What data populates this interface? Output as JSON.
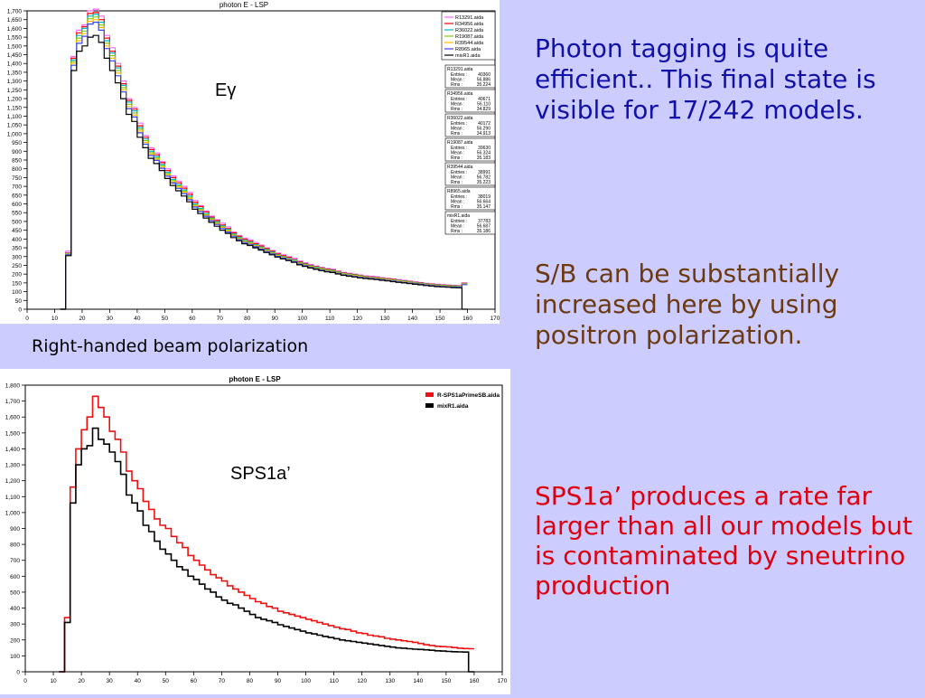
{
  "colors": {
    "background": "#ccccff",
    "text_blue": "#1111aa",
    "text_brown": "#6b3a12",
    "text_red": "#dd0011",
    "series_red": "#ee1111",
    "series_black": "#000000"
  },
  "caption": "Right-handed beam polarization",
  "text_blocks": [
    "Photon tagging is quite efficient.. This final state is visible for 17/242 models.",
    "S/B can be substantially increased here by using positron polarization.",
    "SPS1a’ produces a rate far larger than all our models but is contaminated by sneutrino production"
  ],
  "chart_data": [
    {
      "type": "line",
      "step": true,
      "title": "photon E - LSP",
      "annotation": "Eγ",
      "xlim": [
        0,
        170
      ],
      "ylim": [
        0,
        1700
      ],
      "xticks": [
        0,
        10,
        20,
        30,
        40,
        50,
        60,
        70,
        80,
        90,
        100,
        110,
        120,
        130,
        140,
        150,
        160,
        170
      ],
      "yticks": [
        0,
        50,
        100,
        150,
        200,
        250,
        300,
        350,
        400,
        450,
        500,
        550,
        600,
        650,
        700,
        750,
        800,
        850,
        900,
        950,
        1000,
        1050,
        1100,
        1150,
        1200,
        1250,
        1300,
        1350,
        1400,
        1450,
        1500,
        1550,
        1600,
        1650,
        1700
      ],
      "legend_position": "top-right",
      "x": [
        13,
        15,
        17,
        19,
        21,
        23,
        25,
        27,
        29,
        31,
        33,
        35,
        37,
        39,
        41,
        43,
        45,
        47,
        49,
        51,
        53,
        55,
        57,
        59,
        61,
        63,
        65,
        67,
        69,
        71,
        73,
        75,
        77,
        79,
        81,
        83,
        85,
        87,
        89,
        91,
        93,
        95,
        97,
        99,
        101,
        103,
        105,
        107,
        109,
        111,
        113,
        115,
        117,
        119,
        121,
        123,
        125,
        127,
        129,
        131,
        133,
        135,
        137,
        139,
        141,
        143,
        145,
        147,
        149,
        151,
        153,
        155,
        157,
        159
      ],
      "series": [
        {
          "name": "R13291.aida",
          "color": "#ff66ff",
          "values": [
            0,
            330,
            1440,
            1590,
            1620,
            1700,
            1710,
            1670,
            1560,
            1490,
            1400,
            1300,
            1200,
            1150,
            1060,
            990,
            920,
            890,
            840,
            800,
            760,
            730,
            700,
            665,
            620,
            590,
            560,
            530,
            510,
            490,
            470,
            440,
            420,
            405,
            395,
            380,
            365,
            350,
            335,
            320,
            310,
            300,
            290,
            275,
            265,
            255,
            245,
            238,
            232,
            228,
            218,
            210,
            205,
            200,
            195,
            190,
            188,
            185,
            180,
            176,
            172,
            168,
            165,
            160,
            156,
            152,
            148,
            145,
            142,
            140,
            138,
            136,
            135,
            150
          ]
        },
        {
          "name": "R34956.aida",
          "color": "#ff0000",
          "values": [
            0,
            320,
            1430,
            1575,
            1610,
            1685,
            1690,
            1650,
            1545,
            1470,
            1385,
            1285,
            1190,
            1140,
            1045,
            980,
            910,
            880,
            835,
            790,
            750,
            720,
            690,
            655,
            610,
            585,
            555,
            525,
            505,
            480,
            460,
            435,
            415,
            398,
            388,
            373,
            360,
            345,
            330,
            315,
            305,
            295,
            283,
            270,
            260,
            250,
            242,
            235,
            228,
            224,
            215,
            207,
            202,
            198,
            192,
            187,
            184,
            181,
            177,
            173,
            170,
            165,
            162,
            158,
            153,
            150,
            146,
            143,
            140,
            138,
            136,
            134,
            133,
            148
          ]
        },
        {
          "name": "R36022.aida",
          "color": "#00bbbb",
          "values": [
            0,
            318,
            1420,
            1560,
            1600,
            1670,
            1680,
            1635,
            1530,
            1460,
            1375,
            1275,
            1180,
            1130,
            1035,
            970,
            900,
            870,
            825,
            780,
            740,
            710,
            680,
            645,
            600,
            575,
            545,
            520,
            498,
            475,
            455,
            428,
            410,
            392,
            382,
            368,
            354,
            340,
            325,
            310,
            300,
            290,
            280,
            266,
            257,
            247,
            239,
            232,
            225,
            221,
            212,
            204,
            199,
            195,
            190,
            185,
            182,
            179,
            175,
            171,
            167,
            163,
            160,
            156,
            151,
            148,
            144,
            141,
            138,
            136,
            134,
            132,
            131,
            146
          ]
        },
        {
          "name": "R19087.aida",
          "color": "#88cc00",
          "values": [
            0,
            315,
            1410,
            1545,
            1585,
            1655,
            1665,
            1620,
            1515,
            1445,
            1360,
            1262,
            1168,
            1118,
            1025,
            960,
            892,
            862,
            818,
            772,
            733,
            703,
            673,
            638,
            594,
            569,
            540,
            515,
            493,
            470,
            450,
            424,
            405,
            388,
            378,
            364,
            350,
            336,
            321,
            307,
            297,
            287,
            277,
            263,
            254,
            244,
            236,
            229,
            222,
            218,
            210,
            202,
            197,
            193,
            188,
            183,
            180,
            177,
            173,
            169,
            165,
            161,
            158,
            154,
            149,
            146,
            142,
            139,
            136,
            134,
            132,
            130,
            129,
            144
          ]
        },
        {
          "name": "R39544.aida",
          "color": "#ffbb00",
          "values": [
            0,
            312,
            1400,
            1530,
            1570,
            1640,
            1650,
            1605,
            1500,
            1430,
            1345,
            1250,
            1155,
            1106,
            1015,
            950,
            884,
            855,
            810,
            765,
            726,
            696,
            666,
            631,
            588,
            563,
            535,
            510,
            488,
            465,
            445,
            420,
            400,
            384,
            374,
            360,
            346,
            332,
            318,
            304,
            294,
            284,
            274,
            260,
            251,
            241,
            233,
            226,
            219,
            215,
            207,
            199,
            194,
            190,
            185,
            181,
            178,
            175,
            171,
            167,
            163,
            159,
            156,
            152,
            147,
            144,
            140,
            137,
            134,
            132,
            130,
            128,
            127,
            142
          ]
        },
        {
          "name": "R8965.aida",
          "color": "#3344ff",
          "values": [
            0,
            310,
            1390,
            1515,
            1555,
            1625,
            1635,
            1590,
            1485,
            1415,
            1330,
            1238,
            1143,
            1095,
            1005,
            940,
            876,
            848,
            803,
            758,
            719,
            689,
            659,
            624,
            582,
            557,
            530,
            505,
            483,
            460,
            440,
            416,
            396,
            380,
            370,
            356,
            342,
            328,
            315,
            301,
            291,
            281,
            271,
            257,
            248,
            238,
            230,
            223,
            216,
            212,
            204,
            196,
            191,
            187,
            182,
            178,
            175,
            172,
            168,
            164,
            160,
            156,
            153,
            149,
            145,
            142,
            138,
            135,
            132,
            130,
            128,
            126,
            125,
            140
          ]
        },
        {
          "name": "mixR1.aida",
          "color": "#000000",
          "values": [
            0,
            305,
            1360,
            1470,
            1500,
            1550,
            1560,
            1520,
            1430,
            1360,
            1290,
            1200,
            1110,
            1070,
            980,
            920,
            860,
            830,
            790,
            745,
            705,
            675,
            645,
            612,
            570,
            545,
            520,
            495,
            473,
            450,
            432,
            408,
            390,
            373,
            363,
            350,
            337,
            323,
            310,
            297,
            287,
            277,
            267,
            253,
            244,
            235,
            227,
            220,
            213,
            209,
            201,
            193,
            188,
            184,
            179,
            175,
            172,
            169,
            165,
            161,
            157,
            153,
            150,
            146,
            142,
            139,
            135,
            132,
            129,
            127,
            125,
            123,
            122,
            0
          ]
        }
      ],
      "stats": [
        {
          "file": "R13291.aida",
          "entries": "40360",
          "mean": "56.886",
          "rms": "35.224"
        },
        {
          "file": "R34956.aida",
          "entries": "40671",
          "mean": "56.110",
          "rms": "34.829"
        },
        {
          "file": "R36022.aida",
          "entries": "40172",
          "mean": "56.290",
          "rms": "34.913"
        },
        {
          "file": "R19087.aida",
          "entries": "39630",
          "mean": "56.324",
          "rms": "35.183"
        },
        {
          "file": "R39544.aida",
          "entries": "38991",
          "mean": "56.782",
          "rms": "35.223"
        },
        {
          "file": "R8965.aida",
          "entries": "38019",
          "mean": "56.664",
          "rms": "35.147"
        },
        {
          "file": "mixR1.aida",
          "entries": "37783",
          "mean": "56.687",
          "rms": "35.186"
        }
      ],
      "stat_labels": {
        "entries": "Entries :",
        "mean": "Mean :",
        "rms": "Rms :"
      }
    },
    {
      "type": "line",
      "step": true,
      "title": "photon E - LSP",
      "annotation": "SPS1a’",
      "xlim": [
        0,
        170
      ],
      "ylim": [
        0,
        1800
      ],
      "xticks": [
        0,
        10,
        20,
        30,
        40,
        50,
        60,
        70,
        80,
        90,
        100,
        110,
        120,
        130,
        140,
        150,
        160,
        170
      ],
      "yticks": [
        0,
        100,
        200,
        300,
        400,
        500,
        600,
        700,
        800,
        900,
        1000,
        1100,
        1200,
        1300,
        1400,
        1500,
        1600,
        1700,
        1800
      ],
      "legend_position": "top-right",
      "x": [
        13,
        15,
        17,
        19,
        21,
        23,
        25,
        27,
        29,
        31,
        33,
        35,
        37,
        39,
        41,
        43,
        45,
        47,
        49,
        51,
        53,
        55,
        57,
        59,
        61,
        63,
        65,
        67,
        69,
        71,
        73,
        75,
        77,
        79,
        81,
        83,
        85,
        87,
        89,
        91,
        93,
        95,
        97,
        99,
        101,
        103,
        105,
        107,
        109,
        111,
        113,
        115,
        117,
        119,
        121,
        123,
        125,
        127,
        129,
        131,
        133,
        135,
        137,
        139,
        141,
        143,
        145,
        147,
        149,
        151,
        153,
        155,
        157,
        159
      ],
      "series": [
        {
          "name": "R-SPS1aPrimeSB.aida",
          "color": "#ee1111",
          "values": [
            0,
            340,
            1160,
            1400,
            1520,
            1600,
            1730,
            1660,
            1600,
            1510,
            1460,
            1380,
            1260,
            1200,
            1150,
            1070,
            1020,
            960,
            920,
            900,
            850,
            810,
            780,
            730,
            700,
            670,
            640,
            610,
            590,
            570,
            540,
            520,
            500,
            480,
            460,
            440,
            430,
            410,
            400,
            380,
            370,
            360,
            350,
            340,
            330,
            320,
            310,
            300,
            290,
            280,
            270,
            265,
            255,
            245,
            240,
            230,
            225,
            220,
            210,
            205,
            200,
            195,
            190,
            185,
            178,
            170,
            165,
            160,
            158,
            156,
            152,
            148,
            146,
            145
          ]
        },
        {
          "name": "mixR1.aida",
          "color": "#000000",
          "values": [
            0,
            310,
            1060,
            1300,
            1400,
            1420,
            1530,
            1460,
            1430,
            1380,
            1320,
            1240,
            1110,
            1060,
            1010,
            920,
            880,
            820,
            770,
            740,
            700,
            660,
            640,
            600,
            580,
            550,
            520,
            500,
            470,
            450,
            430,
            420,
            400,
            380,
            360,
            340,
            330,
            320,
            310,
            295,
            285,
            275,
            265,
            255,
            245,
            238,
            230,
            222,
            215,
            208,
            200,
            195,
            190,
            185,
            180,
            175,
            170,
            165,
            160,
            155,
            150,
            148,
            145,
            142,
            140,
            138,
            135,
            132,
            130,
            128,
            126,
            125,
            124,
            0
          ]
        }
      ]
    }
  ]
}
